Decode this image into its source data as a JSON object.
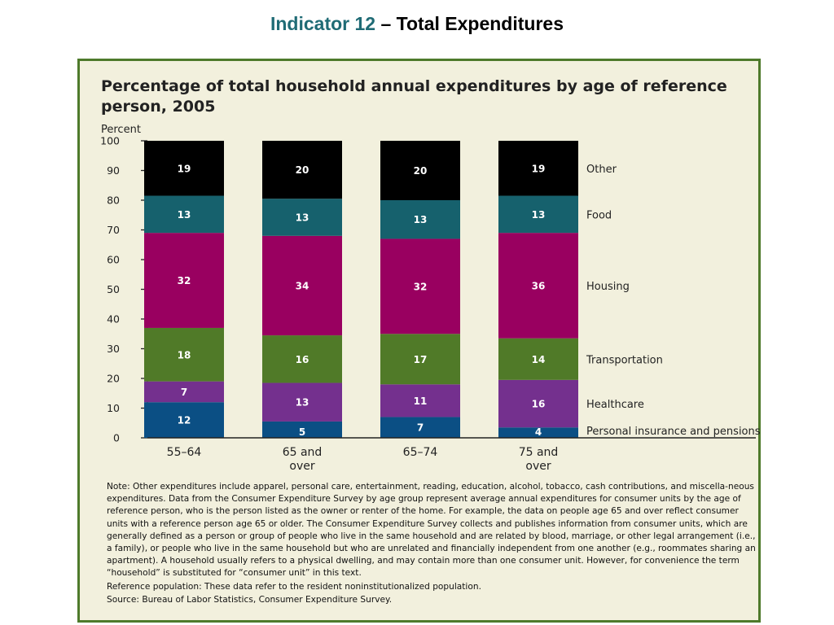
{
  "slide": {
    "title_indicator": "Indicator 12",
    "title_rest": " – Total Expenditures"
  },
  "colors": {
    "panel_background": "#f2f0dd",
    "panel_border": "#4e7a2b",
    "Personal insurance and pensions": "#0b4f84",
    "Healthcare": "#74308e",
    "Transportation": "#507a28",
    "Housing": "#990060",
    "Food": "#16616d",
    "Other": "#000000"
  },
  "chart_data": {
    "type": "bar",
    "stacked": true,
    "title_line1": "Percentage of total household annual expenditures by age of reference",
    "title_line2": "person, 2005",
    "ylabel": "Percent",
    "ylim": [
      0,
      100
    ],
    "yticks": [
      0,
      10,
      20,
      30,
      40,
      50,
      60,
      70,
      80,
      90,
      100
    ],
    "categories": [
      [
        "55–64"
      ],
      [
        "65 and",
        "over"
      ],
      [
        "65–74"
      ],
      [
        "75 and",
        "over"
      ]
    ],
    "legend_placement": "right",
    "series": [
      {
        "name": "Personal insurance and pensions",
        "values": [
          12,
          5,
          7,
          4
        ],
        "boundaries": [
          12,
          5.5,
          7,
          3.5
        ]
      },
      {
        "name": "Healthcare",
        "values": [
          7,
          13,
          11,
          16
        ],
        "boundaries": [
          19,
          18.5,
          18,
          19.5
        ]
      },
      {
        "name": "Transportation",
        "values": [
          18,
          16,
          17,
          14
        ],
        "boundaries": [
          37,
          34.5,
          35,
          33.5
        ]
      },
      {
        "name": "Housing",
        "values": [
          32,
          34,
          32,
          36
        ],
        "boundaries": [
          69,
          68,
          67,
          69
        ]
      },
      {
        "name": "Food",
        "values": [
          13,
          13,
          13,
          13
        ],
        "boundaries": [
          81.5,
          80.5,
          80,
          81.5
        ]
      },
      {
        "name": "Other",
        "values": [
          19,
          20,
          20,
          19
        ],
        "boundaries": [
          100,
          100,
          100,
          100
        ]
      }
    ]
  },
  "notes": {
    "note": "Note:  Other expenditures include apparel, personal care, entertainment, reading, education, alcohol, tobacco, cash contributions, and miscella-neous expenditures. Data from the Consumer Expenditure Survey by age group represent average annual expenditures for consumer units by the age of reference person, who is the person listed as the owner or renter of the home. For example, the data on people age 65 and over reflect consumer units with a reference person age 65 or older. The Consumer Expenditure Survey collects and publishes information from consumer units, which are generally defined as a person or group of people who live in the same household and are related by blood, marriage, or other legal arrangement (i.e., a family), or people who live in the same household but who are unrelated and financially independent from one another (e.g., roommates sharing an apartment). A household usually refers to a physical dwelling, and may contain more than one consumer unit. However, for convenience the term “household” is substituted for “consumer unit” in this text.",
    "reference_population": "Reference population: These data refer to the resident noninstitutionalized population.",
    "source": "Source:  Bureau of Labor Statistics, Consumer Expenditure Survey."
  }
}
